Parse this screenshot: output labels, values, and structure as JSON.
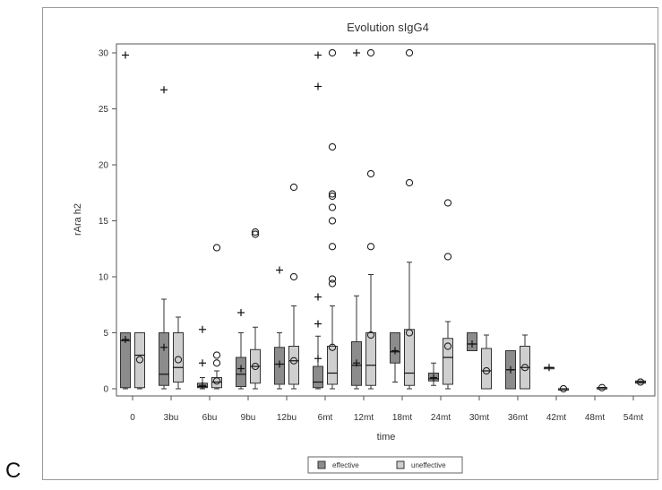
{
  "panel_label": "C",
  "chart_data": {
    "type": "box",
    "title": "Evolution sIgG4",
    "xlabel": "time",
    "ylabel": "rAra h2",
    "ylim": [
      0,
      30
    ],
    "yticks": [
      0,
      5,
      10,
      15,
      20,
      25,
      30
    ],
    "categories": [
      "0",
      "3bu",
      "6bu",
      "9bu",
      "12bu",
      "6mt",
      "12mt",
      "18mt",
      "24mt",
      "30mt",
      "36mt",
      "42mt",
      "48mt",
      "54mt"
    ],
    "grid": false,
    "legend_position": "bottom",
    "colors": {
      "effective": "#8c8c8c",
      "uneffective": "#cfcfcf"
    },
    "series": [
      {
        "name": "effective",
        "marker": "plus",
        "boxes": [
          {
            "cat": "0",
            "min": 0.0,
            "q1": 0.1,
            "median": 4.3,
            "q3": 5.0,
            "max": 5.0,
            "mean": 4.4,
            "outliers": [
              29.8
            ]
          },
          {
            "cat": "3bu",
            "min": 0.0,
            "q1": 0.3,
            "median": 1.3,
            "q3": 5.0,
            "max": 8.0,
            "mean": 3.7,
            "outliers": [
              26.7
            ]
          },
          {
            "cat": "6bu",
            "min": 0.0,
            "q1": 0.1,
            "median": 0.2,
            "q3": 0.5,
            "max": 1.0,
            "mean": 0.3,
            "outliers": [
              2.3,
              5.3
            ]
          },
          {
            "cat": "9bu",
            "min": 0.0,
            "q1": 0.2,
            "median": 1.3,
            "q3": 2.8,
            "max": 5.0,
            "mean": 1.8,
            "outliers": [
              6.8
            ]
          },
          {
            "cat": "12bu",
            "min": 0.0,
            "q1": 0.4,
            "median": 2.2,
            "q3": 3.7,
            "max": 5.0,
            "mean": 2.2,
            "outliers": [
              10.6
            ]
          },
          {
            "cat": "6mt",
            "min": 0.0,
            "q1": 0.1,
            "median": 0.6,
            "q3": 2.0,
            "max": 4.7,
            "mean": 2.7,
            "outliers": [
              5.8,
              8.2,
              27.0,
              29.8
            ]
          },
          {
            "cat": "12mt",
            "min": 0.0,
            "q1": 0.3,
            "median": 2.1,
            "q3": 4.2,
            "max": 8.3,
            "mean": 2.3,
            "outliers": [
              30.0
            ]
          },
          {
            "cat": "18mt",
            "min": 0.6,
            "q1": 2.3,
            "median": 3.3,
            "q3": 5.0,
            "max": 5.0,
            "mean": 3.4,
            "outliers": []
          },
          {
            "cat": "24mt",
            "min": 0.3,
            "q1": 0.7,
            "median": 0.9,
            "q3": 1.4,
            "max": 2.3,
            "mean": 1.0,
            "outliers": []
          },
          {
            "cat": "30mt",
            "min": 3.4,
            "q1": 3.4,
            "median": 4.0,
            "q3": 5.0,
            "max": 5.0,
            "mean": 4.0,
            "outliers": []
          },
          {
            "cat": "36mt",
            "min": 0.0,
            "q1": 0.0,
            "median": 1.7,
            "q3": 3.4,
            "max": 3.4,
            "mean": 1.7,
            "outliers": []
          },
          {
            "cat": "42mt",
            "min": 1.9,
            "q1": 1.9,
            "median": 1.9,
            "q3": 1.9,
            "max": 1.9,
            "mean": 1.9,
            "outliers": []
          }
        ]
      },
      {
        "name": "uneffective",
        "marker": "circle",
        "boxes": [
          {
            "cat": "0",
            "min": 0.0,
            "q1": 0.1,
            "median": 3.0,
            "q3": 5.0,
            "max": 5.0,
            "mean": 2.6,
            "outliers": []
          },
          {
            "cat": "3bu",
            "min": 0.0,
            "q1": 0.6,
            "median": 1.9,
            "q3": 5.0,
            "max": 6.4,
            "mean": 2.6,
            "outliers": []
          },
          {
            "cat": "6bu",
            "min": 0.0,
            "q1": 0.1,
            "median": 0.6,
            "q3": 1.0,
            "max": 1.6,
            "mean": 0.7,
            "outliers": [
              2.3,
              3.0,
              12.6
            ]
          },
          {
            "cat": "9bu",
            "min": 0.0,
            "q1": 0.5,
            "median": 2.0,
            "q3": 3.5,
            "max": 5.5,
            "mean": 2.0,
            "outliers": [
              13.8,
              14.0
            ]
          },
          {
            "cat": "12bu",
            "min": 0.0,
            "q1": 0.4,
            "median": 2.5,
            "q3": 3.8,
            "max": 7.4,
            "mean": 2.5,
            "outliers": [
              10.0,
              18.0
            ]
          },
          {
            "cat": "6mt",
            "min": 0.0,
            "q1": 0.4,
            "median": 1.4,
            "q3": 3.8,
            "max": 7.4,
            "mean": 3.7,
            "outliers": [
              9.4,
              9.8,
              12.7,
              15.0,
              16.2,
              17.2,
              17.4,
              21.6,
              30.0
            ]
          },
          {
            "cat": "12mt",
            "min": 0.0,
            "q1": 0.3,
            "median": 2.1,
            "q3": 5.0,
            "max": 10.2,
            "mean": 4.8,
            "outliers": [
              12.7,
              19.2,
              30.0
            ]
          },
          {
            "cat": "18mt",
            "min": 0.0,
            "q1": 0.3,
            "median": 1.4,
            "q3": 5.3,
            "max": 11.3,
            "mean": 5.0,
            "outliers": [
              18.4,
              30.0
            ]
          },
          {
            "cat": "24mt",
            "min": 0.0,
            "q1": 0.4,
            "median": 2.8,
            "q3": 4.5,
            "max": 6.0,
            "mean": 3.8,
            "outliers": [
              11.8,
              16.6
            ]
          },
          {
            "cat": "30mt",
            "min": 0.0,
            "q1": 0.0,
            "median": 1.6,
            "q3": 3.6,
            "max": 4.8,
            "mean": 1.6,
            "outliers": []
          },
          {
            "cat": "36mt",
            "min": 0.0,
            "q1": 0.0,
            "median": 1.9,
            "q3": 3.8,
            "max": 4.8,
            "mean": 1.9,
            "outliers": []
          },
          {
            "cat": "42mt",
            "min": 0.0,
            "q1": 0.0,
            "median": 0.0,
            "q3": 0.0,
            "max": 0.0,
            "mean": 0.0,
            "outliers": []
          },
          {
            "cat": "48mt",
            "min": 0.1,
            "q1": 0.1,
            "median": 0.1,
            "q3": 0.1,
            "max": 0.1,
            "mean": 0.1,
            "outliers": []
          },
          {
            "cat": "54mt",
            "min": 0.5,
            "q1": 0.5,
            "median": 0.6,
            "q3": 0.7,
            "max": 0.7,
            "mean": 0.6,
            "outliers": []
          }
        ]
      }
    ]
  }
}
